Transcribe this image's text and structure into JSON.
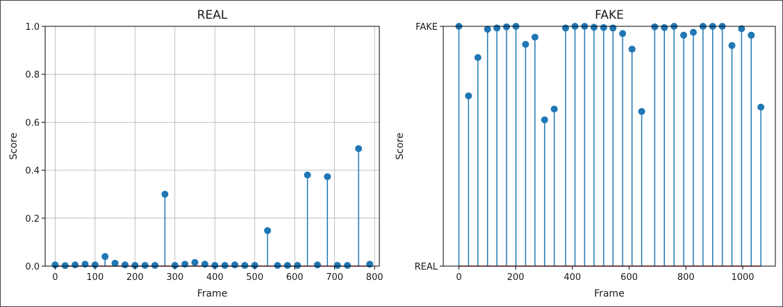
{
  "chart_data": [
    {
      "type": "stem",
      "title": "REAL",
      "xlabel": "Frame",
      "ylabel": "Score",
      "xlim": [
        -25,
        812
      ],
      "ylim": [
        0,
        1
      ],
      "grid": true,
      "xticks": [
        0,
        100,
        200,
        300,
        400,
        500,
        600,
        700,
        800
      ],
      "yticks": [
        0.0,
        0.2,
        0.4,
        0.6,
        0.8,
        1.0
      ],
      "ytick_labels": [
        "0.0",
        "0.2",
        "0.4",
        "0.6",
        "0.8",
        "1.0"
      ],
      "color": "#1f77b4",
      "baseline_color": "#d62728",
      "x": [
        0,
        25,
        50,
        75,
        100,
        125,
        150,
        175,
        200,
        225,
        250,
        275,
        300,
        325,
        350,
        375,
        400,
        425,
        450,
        475,
        500,
        532,
        557,
        582,
        607,
        632,
        657,
        682,
        707,
        732,
        760,
        788
      ],
      "y": [
        0.005,
        0.002,
        0.005,
        0.008,
        0.005,
        0.04,
        0.012,
        0.005,
        0.003,
        0.003,
        0.003,
        0.3,
        0.003,
        0.008,
        0.015,
        0.008,
        0.003,
        0.003,
        0.005,
        0.003,
        0.003,
        0.148,
        0.003,
        0.003,
        0.003,
        0.38,
        0.005,
        0.373,
        0.003,
        0.003,
        0.49,
        0.008
      ]
    },
    {
      "type": "stem",
      "title": "FAKE",
      "xlabel": "Frame",
      "ylabel": "Score",
      "xlim": [
        -55,
        1115
      ],
      "ylim": [
        0,
        1
      ],
      "grid": false,
      "xticks": [
        0,
        200,
        400,
        600,
        800,
        1000
      ],
      "yticks": [
        0,
        1
      ],
      "ytick_labels": [
        "REAL",
        "FAKE"
      ],
      "color": "#1f77b4",
      "baseline_color": "#d62728",
      "x": [
        0,
        34,
        67,
        101,
        134,
        168,
        201,
        235,
        268,
        302,
        336,
        376,
        409,
        443,
        476,
        510,
        543,
        577,
        610,
        644,
        690,
        724,
        758,
        792,
        826,
        860,
        894,
        928,
        962,
        996,
        1030,
        1064
      ],
      "y": [
        1.0,
        0.71,
        0.87,
        0.988,
        0.993,
        0.998,
        1.0,
        0.925,
        0.955,
        0.61,
        0.655,
        0.993,
        1.0,
        1.0,
        0.996,
        0.995,
        0.993,
        0.97,
        0.905,
        0.645,
        0.998,
        0.995,
        1.0,
        0.963,
        0.975,
        1.0,
        1.0,
        1.0,
        0.92,
        0.99,
        0.963,
        0.663
      ]
    }
  ]
}
